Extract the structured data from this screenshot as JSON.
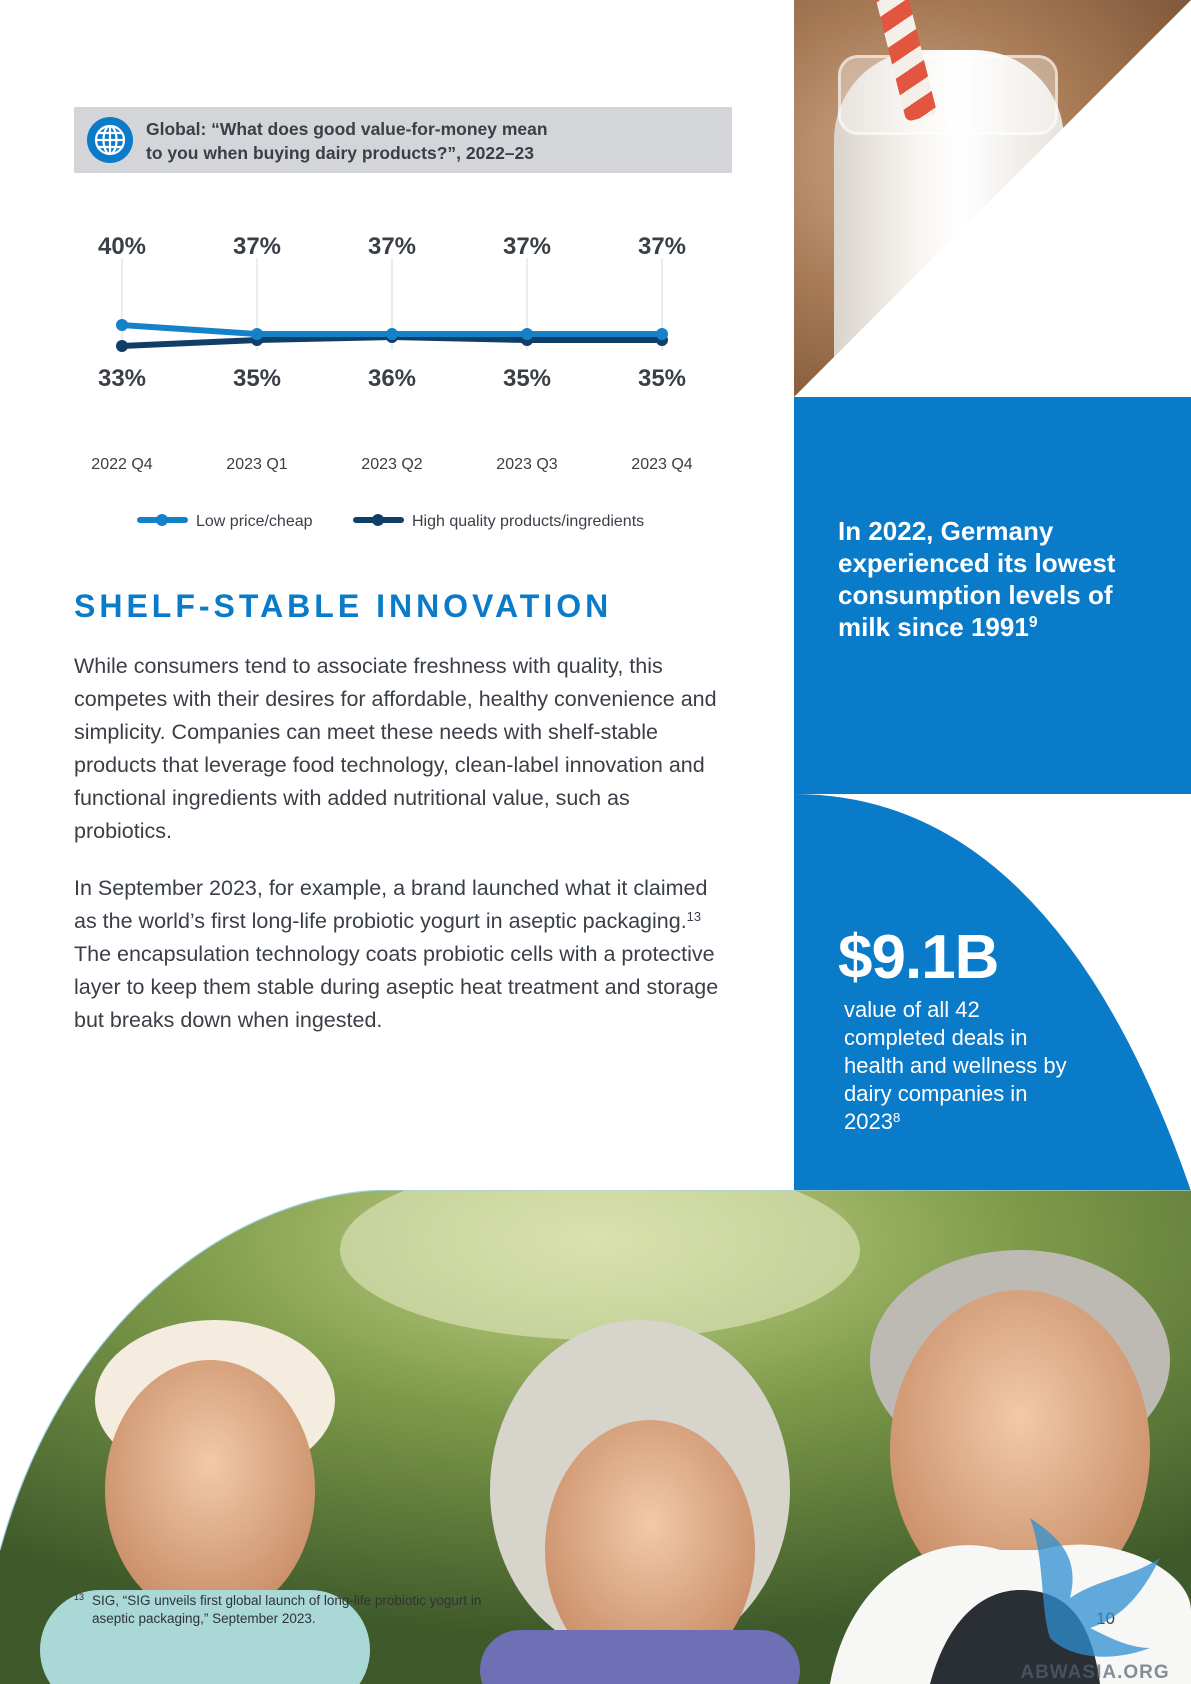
{
  "chart_header": {
    "title_line1": "Global: “What does good value-for-money mean",
    "title_line2": "to you when buying dairy products?”, 2022–23"
  },
  "chart_data": {
    "type": "line",
    "title": "Global: “What does good value-for-money mean to you when buying dairy products?”, 2022–23",
    "categories": [
      "2022 Q4",
      "2023 Q1",
      "2023 Q2",
      "2023 Q3",
      "2023 Q4"
    ],
    "series": [
      {
        "name": "Low price/cheap",
        "values": [
          40,
          37,
          37,
          37,
          37
        ],
        "labels": [
          "40%",
          "37%",
          "37%",
          "37%",
          "37%"
        ],
        "color": "#1581c9"
      },
      {
        "name": "High quality products/ingredients",
        "values": [
          33,
          35,
          36,
          35,
          35
        ],
        "labels": [
          "33%",
          "35%",
          "36%",
          "35%",
          "35%"
        ],
        "color": "#0f3f68"
      }
    ],
    "grid": "vertical lines at categories",
    "legend": "bottom-center"
  },
  "section": {
    "heading": "SHELF-STABLE INNOVATION",
    "para1": "While consumers tend to associate freshness with quality, this competes with their desires for affordable, healthy convenience and simplicity. Companies can meet these needs with shelf-stable products that leverage food technology, clean-label innovation and functional ingredients with added nutritional value, such as probiotics.",
    "para2_before": "In September 2023, for example, a brand launched what it claimed as the world’s first long-life probiotic yogurt in aseptic packaging.",
    "para2_sup": "13",
    "para2_after": " The encapsulation technology coats probiotic cells with a protective layer to keep them stable during aseptic heat treatment and storage but breaks down when ingested."
  },
  "stat_germany": {
    "text": "In 2022, Germany experienced its lowest consumption levels of milk since 1991",
    "sup": "9"
  },
  "stat_deals": {
    "value": "$9.1B",
    "text": "value of all 42 completed deals in health and wellness by dairy companies in 2023",
    "sup": "8"
  },
  "footnote": {
    "number": "13",
    "text": "SIG, “SIG unveils first global launch of long-life probiotic yogurt in aseptic packaging,” September 2023."
  },
  "page_number": "10",
  "watermark_text": "ABWASIA.ORG",
  "colors": {
    "brand_blue": "#0a7bc9",
    "series_light": "#1581c9",
    "series_dark": "#0f3f68",
    "header_gray": "#d3d5d9"
  },
  "images": {
    "top_right": "milk-bottle-with-straw-photo",
    "bottom": "three-laughing-senior-people-photo"
  }
}
